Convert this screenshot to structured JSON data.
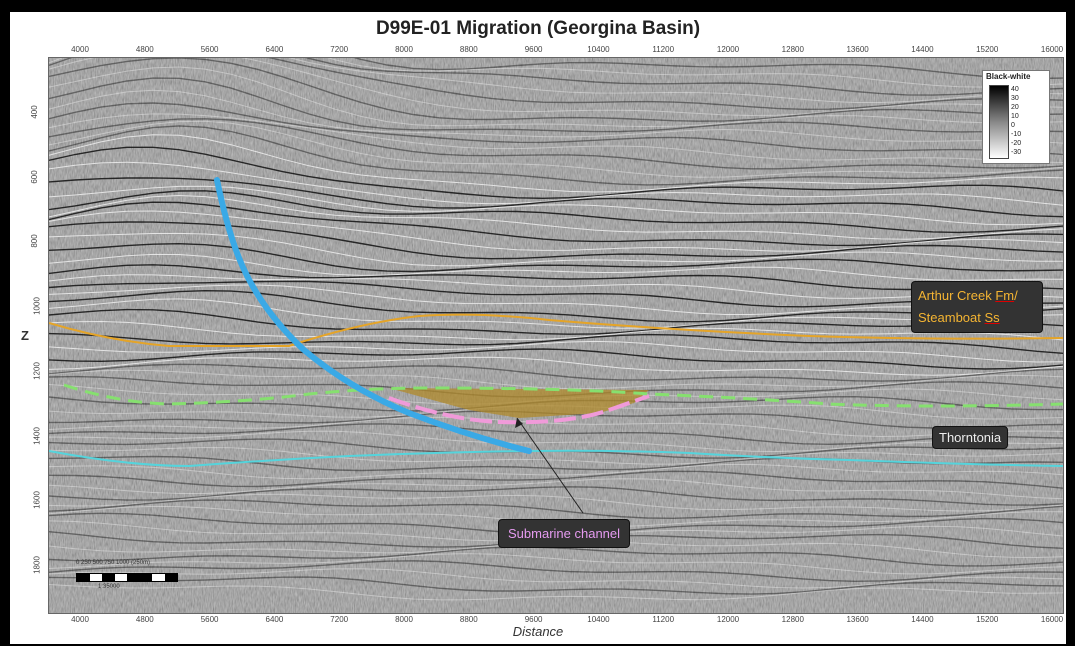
{
  "title": "D99E-01 Migration (Georgina Basin)",
  "x_axis_label": "Distance",
  "y_axis_label": "Z",
  "x_ticks": [
    "4000",
    "4800",
    "5600",
    "6400",
    "7200",
    "8000",
    "8800",
    "9600",
    "10400",
    "11200",
    "12000",
    "12800",
    "13600",
    "14400",
    "15200",
    "16000"
  ],
  "y_ticks": [
    "400",
    "600",
    "800",
    "1000",
    "1200",
    "1400",
    "1600",
    "1800"
  ],
  "legend": {
    "title": "Black-white",
    "values": [
      "40",
      "30",
      "20",
      "10",
      "0",
      "-10",
      "-20",
      "-30"
    ]
  },
  "annotations": {
    "arthur_line1_a": "Arthur Creek ",
    "arthur_line1_b": "Fm",
    "arthur_line1_c": "/",
    "arthur_line2_a": "Steamboat ",
    "arthur_line2_b": "Ss",
    "thorntonia": "Thorntonia",
    "submarine": "Submarine channel"
  },
  "scale_bar": {
    "labels": "0    250  500  750  1000 (250m)",
    "ratio": "1:35000"
  },
  "colors": {
    "arthur_horizon": "#e5a427",
    "thorntonia_horizon": "#55d4dc",
    "green_horizon": "#86e06f",
    "channel_base": "#f09ad9",
    "channel_fill": "#b08a2a",
    "well_trace": "#3aa9e6"
  }
}
